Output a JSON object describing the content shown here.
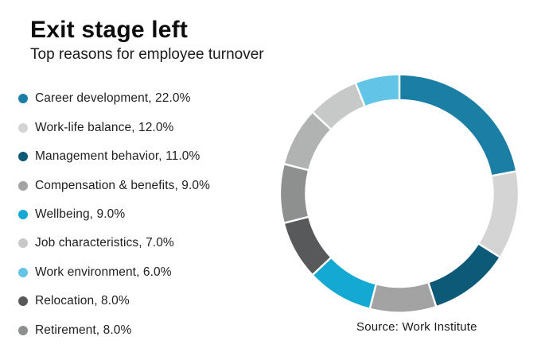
{
  "chart_data": {
    "type": "pie",
    "variant": "donut",
    "title": "Exit stage left",
    "subtitle": "Top reasons for employee turnover",
    "source": "Source: Work Institute",
    "units": "percent",
    "total": 100,
    "start_angle_deg": 0,
    "direction": "clockwise",
    "legend_position": "left",
    "segments": [
      {
        "key": "career-development",
        "legend_label": "Career development, 22.0%",
        "name": "Career development",
        "value": 22.0,
        "color": "#1b7ea4",
        "legend_index": 0
      },
      {
        "key": "work-life-balance",
        "legend_label": "Work-life balance, 12.0%",
        "name": "Work-life balance",
        "value": 12.0,
        "color": "#d4d4d4",
        "legend_index": 1
      },
      {
        "key": "management-behavior",
        "legend_label": "Management behavior, 11.0%",
        "name": "Management behavior",
        "value": 11.0,
        "color": "#0d5a78",
        "legend_index": 2
      },
      {
        "key": "compensation-benefits",
        "legend_label": "Compensation & benefits, 9.0%",
        "name": "Compensation & benefits",
        "value": 9.0,
        "color": "#a3a3a3",
        "legend_index": 3
      },
      {
        "key": "wellbeing",
        "legend_label": "Wellbeing, 9.0%",
        "name": "Wellbeing",
        "value": 9.0,
        "color": "#14a9d2",
        "legend_index": 4
      },
      {
        "key": "relocation",
        "legend_label": "Relocation, 8.0%",
        "name": "Relocation",
        "value": 8.0,
        "color": "#58595b",
        "legend_index": 7
      },
      {
        "key": "retirement",
        "legend_label": "Retirement, 8.0%",
        "name": "Retirement",
        "value": 8.0,
        "color": "#8e8f8f",
        "legend_index": 8
      },
      {
        "key": "unlabeled-filler",
        "legend_label": null,
        "name": "",
        "value": 8.0,
        "color": "#b1b2b2",
        "legend_index": null
      },
      {
        "key": "job-characteristics",
        "legend_label": "Job characteristics, 7.0%",
        "name": "Job characteristics",
        "value": 7.0,
        "color": "#c7c8c8",
        "legend_index": 5
      },
      {
        "key": "work-environment",
        "legend_label": "Work environment, 6.0%",
        "name": "Work environment",
        "value": 6.0,
        "color": "#62c4e7",
        "legend_index": 6
      }
    ]
  }
}
